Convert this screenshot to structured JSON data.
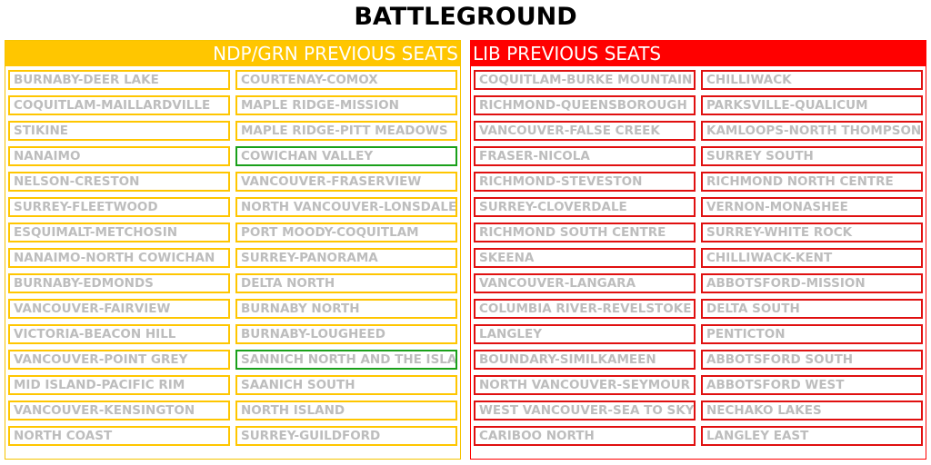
{
  "title": "BATTLEGROUND",
  "colors": {
    "ndp": "#ffc600",
    "lib": "#e01010",
    "grn": "#1aa01a",
    "text": "#bdbdbd"
  },
  "panels": [
    {
      "id": "ndp",
      "header": "NDP/GRN PREVIOUS SEATS",
      "columns": [
        [
          {
            "name": "BURNABY-DEER LAKE",
            "party": "ndp"
          },
          {
            "name": "COQUITLAM-MAILLARDVILLE",
            "party": "ndp"
          },
          {
            "name": "STIKINE",
            "party": "ndp"
          },
          {
            "name": "NANAIMO",
            "party": "ndp"
          },
          {
            "name": "NELSON-CRESTON",
            "party": "ndp"
          },
          {
            "name": "SURREY-FLEETWOOD",
            "party": "ndp"
          },
          {
            "name": "ESQUIMALT-METCHOSIN",
            "party": "ndp"
          },
          {
            "name": "NANAIMO-NORTH COWICHAN",
            "party": "ndp"
          },
          {
            "name": "BURNABY-EDMONDS",
            "party": "ndp"
          },
          {
            "name": "VANCOUVER-FAIRVIEW",
            "party": "ndp"
          },
          {
            "name": "VICTORIA-BEACON HILL",
            "party": "ndp"
          },
          {
            "name": "VANCOUVER-POINT GREY",
            "party": "ndp"
          },
          {
            "name": "MID ISLAND-PACIFIC RIM",
            "party": "ndp"
          },
          {
            "name": "VANCOUVER-KENSINGTON",
            "party": "ndp"
          },
          {
            "name": "NORTH COAST",
            "party": "ndp"
          }
        ],
        [
          {
            "name": "COURTENAY-COMOX",
            "party": "ndp"
          },
          {
            "name": "MAPLE RIDGE-MISSION",
            "party": "ndp"
          },
          {
            "name": "MAPLE RIDGE-PITT MEADOWS",
            "party": "ndp"
          },
          {
            "name": "COWICHAN VALLEY",
            "party": "grn"
          },
          {
            "name": "VANCOUVER-FRASERVIEW",
            "party": "ndp"
          },
          {
            "name": "NORTH VANCOUVER-LONSDALE",
            "party": "ndp"
          },
          {
            "name": "PORT MOODY-COQUITLAM",
            "party": "ndp"
          },
          {
            "name": "SURREY-PANORAMA",
            "party": "ndp"
          },
          {
            "name": "DELTA NORTH",
            "party": "ndp"
          },
          {
            "name": "BURNABY NORTH",
            "party": "ndp"
          },
          {
            "name": "BURNABY-LOUGHEED",
            "party": "ndp"
          },
          {
            "name": "SANNICH NORTH AND THE ISLAND",
            "party": "grn"
          },
          {
            "name": "SAANICH SOUTH",
            "party": "ndp"
          },
          {
            "name": "NORTH ISLAND",
            "party": "ndp"
          },
          {
            "name": "SURREY-GUILDFORD",
            "party": "ndp"
          }
        ]
      ]
    },
    {
      "id": "lib",
      "header": "LIB PREVIOUS SEATS",
      "columns": [
        [
          {
            "name": "COQUITLAM-BURKE MOUNTAIN",
            "party": "lib"
          },
          {
            "name": "RICHMOND-QUEENSBOROUGH",
            "party": "lib"
          },
          {
            "name": "VANCOUVER-FALSE CREEK",
            "party": "lib"
          },
          {
            "name": "FRASER-NICOLA",
            "party": "lib"
          },
          {
            "name": "RICHMOND-STEVESTON",
            "party": "lib"
          },
          {
            "name": "SURREY-CLOVERDALE",
            "party": "lib"
          },
          {
            "name": "RICHMOND SOUTH CENTRE",
            "party": "lib"
          },
          {
            "name": "SKEENA",
            "party": "lib"
          },
          {
            "name": "VANCOUVER-LANGARA",
            "party": "lib"
          },
          {
            "name": "COLUMBIA RIVER-REVELSTOKE",
            "party": "lib"
          },
          {
            "name": "LANGLEY",
            "party": "lib"
          },
          {
            "name": "BOUNDARY-SIMILKAMEEN",
            "party": "lib"
          },
          {
            "name": "NORTH VANCOUVER-SEYMOUR",
            "party": "lib"
          },
          {
            "name": "WEST VANCOUVER-SEA TO SKY",
            "party": "lib"
          },
          {
            "name": "CARIBOO NORTH",
            "party": "lib"
          }
        ],
        [
          {
            "name": "CHILLIWACK",
            "party": "lib"
          },
          {
            "name": "PARKSVILLE-QUALICUM",
            "party": "lib"
          },
          {
            "name": "KAMLOOPS-NORTH THOMPSON",
            "party": "lib"
          },
          {
            "name": "SURREY SOUTH",
            "party": "lib"
          },
          {
            "name": "RICHMOND NORTH CENTRE",
            "party": "lib"
          },
          {
            "name": "VERNON-MONASHEE",
            "party": "lib"
          },
          {
            "name": "SURREY-WHITE ROCK",
            "party": "lib"
          },
          {
            "name": "CHILLIWACK-KENT",
            "party": "lib"
          },
          {
            "name": "ABBOTSFORD-MISSION",
            "party": "lib"
          },
          {
            "name": "DELTA SOUTH",
            "party": "lib"
          },
          {
            "name": "PENTICTON",
            "party": "lib"
          },
          {
            "name": "ABBOTSFORD SOUTH",
            "party": "lib"
          },
          {
            "name": "ABBOTSFORD WEST",
            "party": "lib"
          },
          {
            "name": "NECHAKO LAKES",
            "party": "lib"
          },
          {
            "name": "LANGLEY EAST",
            "party": "lib"
          }
        ]
      ]
    }
  ]
}
